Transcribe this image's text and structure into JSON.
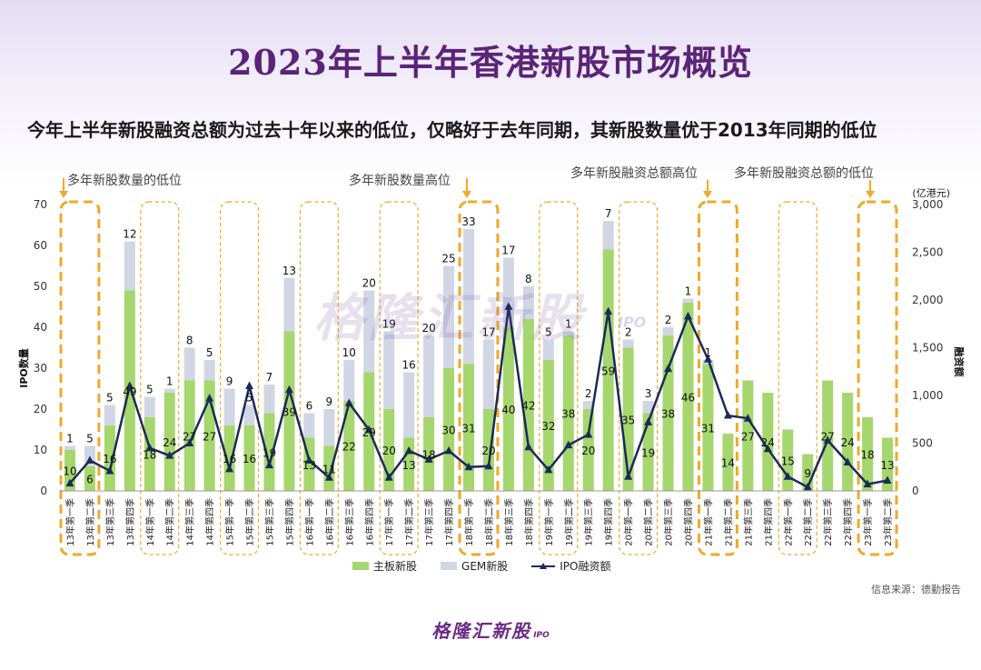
{
  "title": "2023年上半年香港新股市场概览",
  "subtitle": "今年上半年新股融资总额为过去十年以来的低位，仅略好于去年同期，其新股数量优于2013年同期的低位",
  "annotations": [
    "多年新股数量的低位",
    "多年新股数量高位",
    "多年新股融资总额高位",
    "多年新股融资总额的低位"
  ],
  "watermark": "格隆汇新股",
  "watermark_sub": "IPO",
  "source": "信息来源：德勤报告",
  "brand": "格隆汇新股",
  "brand_ipo": "IPO",
  "legend": {
    "main": "主板新股",
    "gem": "GEM新股",
    "line": "IPO融资额"
  },
  "colors": {
    "main_bar": "#a6d66e",
    "gem_bar": "#d0d6e4",
    "line": "#1b2a5a",
    "highlight": "#f0a828",
    "title": "#5b2478"
  },
  "chart_data": {
    "type": "bar",
    "categories": [
      "13年第一季",
      "13年第二季",
      "13年第三季",
      "13年第四季",
      "14年第一季",
      "14年第二季",
      "14年第三季",
      "14年第四季",
      "15年第一季",
      "15年第二季",
      "15年第三季",
      "15年第四季",
      "16年第一季",
      "16年第二季",
      "16年第三季",
      "16年第四季",
      "17年第一季",
      "17年第二季",
      "17年第三季",
      "17年第四季",
      "18年第一季",
      "18年第二季",
      "18年第三季",
      "18年第四季",
      "19年第一季",
      "19年第二季",
      "19年第三季",
      "19年第四季",
      "20年第一季",
      "20年第二季",
      "20年第三季",
      "20年第四季",
      "21年第一季",
      "21年第二季",
      "21年第三季",
      "21年第四季",
      "22年第一季",
      "22年第二季",
      "22年第三季",
      "22年第四季",
      "23年第一季",
      "23年第二季"
    ],
    "series": [
      {
        "name": "主板新股",
        "values": [
          10,
          6,
          16,
          49,
          18,
          24,
          27,
          27,
          16,
          16,
          19,
          39,
          13,
          11,
          22,
          29,
          20,
          13,
          18,
          30,
          31,
          20,
          40,
          42,
          32,
          38,
          20,
          59,
          35,
          19,
          38,
          46,
          31,
          14,
          27,
          24,
          15,
          9,
          27,
          24,
          18,
          13
        ]
      },
      {
        "name": "GEM新股",
        "values": [
          1,
          5,
          5,
          12,
          5,
          1,
          8,
          5,
          9,
          5,
          7,
          13,
          6,
          9,
          10,
          20,
          19,
          16,
          20,
          25,
          33,
          17,
          17,
          8,
          5,
          1,
          2,
          7,
          2,
          3,
          2,
          1,
          1,
          0,
          0,
          0,
          0,
          0,
          0,
          0,
          0,
          0
        ]
      },
      {
        "name": "IPO融资额",
        "values": [
          80,
          320,
          210,
          1100,
          450,
          370,
          500,
          970,
          230,
          1100,
          270,
          1060,
          320,
          140,
          920,
          640,
          140,
          420,
          330,
          420,
          250,
          260,
          1930,
          460,
          220,
          480,
          590,
          1880,
          150,
          720,
          1280,
          1830,
          1380,
          790,
          760,
          440,
          150,
          40,
          530,
          300,
          70,
          110
        ]
      }
    ],
    "labels_main": [
      "10",
      "6",
      "16",
      "49",
      "18",
      "24",
      "27",
      "27",
      "16",
      "16",
      "19",
      "39",
      "13",
      "11",
      "22",
      "29",
      "20",
      "13",
      "18",
      "30",
      "31",
      "20",
      "40",
      "42",
      "32",
      "38",
      "20",
      "59",
      "35",
      "19",
      "38",
      "46",
      "31",
      "14",
      "27",
      "24",
      "15",
      "9",
      "27",
      "24",
      "18",
      "13"
    ],
    "labels_gem": [
      "1",
      "5",
      "5",
      "12",
      "5",
      "1",
      "8",
      "5",
      "9",
      "5",
      "7",
      "13",
      "6",
      "9",
      "10",
      "20",
      "19",
      "16",
      "20",
      "25",
      "33",
      "17",
      "17",
      "8",
      "5",
      "1",
      "2",
      "7",
      "2",
      "3",
      "2",
      "1",
      "1",
      "",
      "",
      "",
      "",
      "",
      "",
      "",
      "",
      ""
    ],
    "y_left": {
      "label": "IPO数量",
      "lim": [
        0,
        70
      ],
      "ticks": [
        "0",
        "10",
        "20",
        "30",
        "40",
        "50",
        "60",
        "70"
      ]
    },
    "y_right": {
      "label": "融资额",
      "unit": "(亿港元)",
      "lim": [
        0,
        3000
      ],
      "ticks": [
        "0",
        "500",
        "1,000",
        "1,500",
        "2,000",
        "2,500",
        "3,000"
      ]
    },
    "grid": false,
    "legend_position": "bottom",
    "highlight_boxes": [
      {
        "from": 0,
        "to": 1,
        "style": "thick"
      },
      {
        "from": 4,
        "to": 5,
        "style": "thin"
      },
      {
        "from": 8,
        "to": 9,
        "style": "thin"
      },
      {
        "from": 12,
        "to": 13,
        "style": "thin"
      },
      {
        "from": 16,
        "to": 17,
        "style": "thin"
      },
      {
        "from": 20,
        "to": 21,
        "style": "thick"
      },
      {
        "from": 24,
        "to": 25,
        "style": "thin"
      },
      {
        "from": 28,
        "to": 29,
        "style": "thin"
      },
      {
        "from": 32,
        "to": 33,
        "style": "thick"
      },
      {
        "from": 36,
        "to": 37,
        "style": "thin"
      },
      {
        "from": 40,
        "to": 41,
        "style": "thick"
      }
    ]
  }
}
